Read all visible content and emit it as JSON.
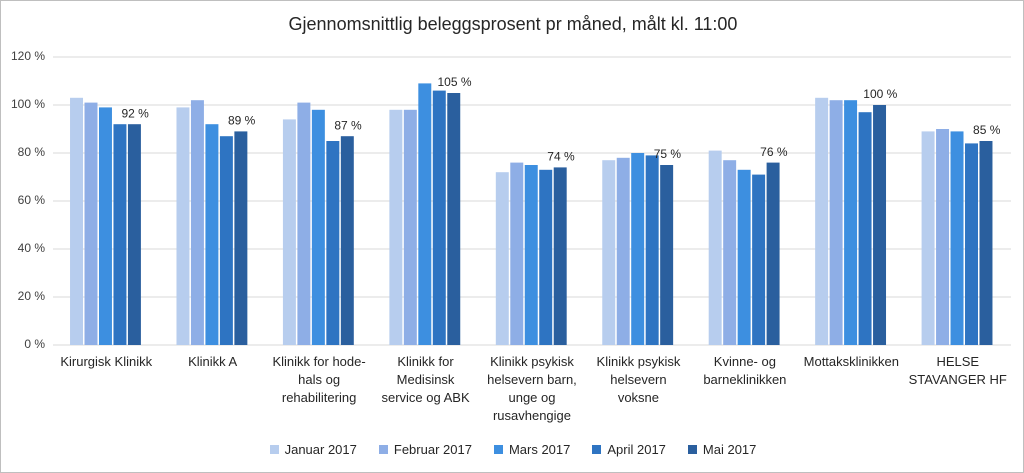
{
  "chart_data": {
    "type": "bar",
    "title": "Gjennomsnittlig beleggsprosent pr måned, målt kl. 11:00",
    "categories": [
      "Kirurgisk Klinikk",
      "Klinikk A",
      "Klinikk for hode-hals og rehabilitering",
      "Klinikk for Medisinsk service og ABK",
      "Klinikk psykisk helsevern barn, unge og rusavhengige",
      "Klinikk psykisk helsevern voksne",
      "Kvinne- og barneklinikken",
      "Mottaksklinikken",
      "HELSE STAVANGER HF"
    ],
    "series": [
      {
        "name": "Januar 2017",
        "color": "#b7cdee",
        "values": [
          103,
          99,
          94,
          98,
          72,
          77,
          81,
          103,
          89
        ]
      },
      {
        "name": "Februar 2017",
        "color": "#8eaee6",
        "values": [
          101,
          102,
          101,
          98,
          76,
          78,
          77,
          102,
          90
        ]
      },
      {
        "name": "Mars 2017",
        "color": "#3d8fe0",
        "values": [
          99,
          92,
          98,
          109,
          75,
          80,
          73,
          102,
          89
        ]
      },
      {
        "name": "April 2017",
        "color": "#2e74c2",
        "values": [
          92,
          87,
          85,
          106,
          73,
          79,
          71,
          97,
          84
        ]
      },
      {
        "name": "Mai 2017",
        "color": "#2a5f9e",
        "values": [
          92,
          89,
          87,
          105,
          74,
          75,
          76,
          100,
          85
        ],
        "value_labels": [
          "92 %",
          "89 %",
          "87 %",
          "105 %",
          "74 %",
          "75 %",
          "76 %",
          "100 %",
          "85 %"
        ]
      }
    ],
    "ylim": [
      0,
      120
    ],
    "yticks": [
      {
        "value": 0,
        "label": "0 %"
      },
      {
        "value": 20,
        "label": "20 %"
      },
      {
        "value": 40,
        "label": "40 %"
      },
      {
        "value": 60,
        "label": "60 %"
      },
      {
        "value": 80,
        "label": "80 %"
      },
      {
        "value": 100,
        "label": "100 %"
      },
      {
        "value": 120,
        "label": "120 %"
      }
    ],
    "grid": true,
    "legend": "bottom"
  }
}
